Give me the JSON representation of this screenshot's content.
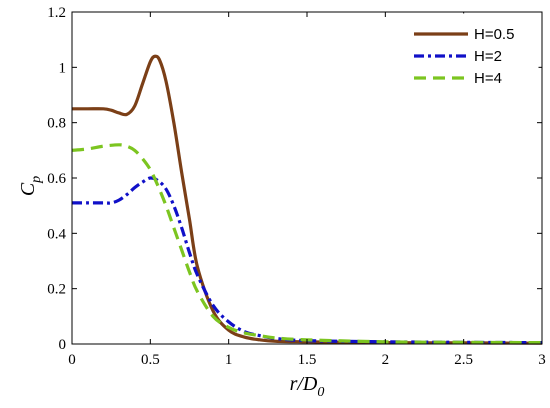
{
  "chart_data": {
    "type": "line",
    "title": "",
    "xlabel": {
      "main": "r/D",
      "sub": "0"
    },
    "ylabel": {
      "main": "C",
      "sub": "p"
    },
    "xlim": [
      0,
      3
    ],
    "ylim": [
      0,
      1.2
    ],
    "xticks": [
      0,
      0.5,
      1,
      1.5,
      2,
      2.5,
      3
    ],
    "xtick_labels": [
      "0",
      "0.5",
      "1",
      "1.5",
      "2",
      "2.5",
      "3"
    ],
    "yticks": [
      0,
      0.2,
      0.4,
      0.6,
      0.8,
      1,
      1.2
    ],
    "ytick_labels": [
      "0",
      "0.2",
      "0.4",
      "0.6",
      "0.8",
      "1",
      "1.2"
    ],
    "grid": false,
    "legend_position": "top-right",
    "series": [
      {
        "name": "H=0.5",
        "color": "#7B3F17",
        "style": "solid",
        "x": [
          0,
          0.1,
          0.2,
          0.25,
          0.3,
          0.35,
          0.4,
          0.45,
          0.5,
          0.53,
          0.56,
          0.6,
          0.65,
          0.7,
          0.75,
          0.8,
          0.9,
          1.0,
          1.1,
          1.2,
          1.3,
          1.5,
          2.0,
          2.5,
          3.0
        ],
        "y": [
          0.85,
          0.85,
          0.85,
          0.845,
          0.835,
          0.83,
          0.86,
          0.94,
          1.02,
          1.04,
          1.025,
          0.95,
          0.8,
          0.62,
          0.45,
          0.28,
          0.12,
          0.05,
          0.025,
          0.015,
          0.01,
          0.008,
          0.005,
          0.004,
          0.003
        ]
      },
      {
        "name": "H=2",
        "color": "#1010C8",
        "style": "dash-dot",
        "x": [
          0,
          0.1,
          0.2,
          0.25,
          0.3,
          0.35,
          0.4,
          0.45,
          0.5,
          0.55,
          0.6,
          0.65,
          0.7,
          0.75,
          0.8,
          0.9,
          1.0,
          1.1,
          1.2,
          1.3,
          1.5,
          2.0,
          2.5,
          3.0
        ],
        "y": [
          0.51,
          0.51,
          0.51,
          0.51,
          0.52,
          0.54,
          0.565,
          0.585,
          0.6,
          0.59,
          0.56,
          0.5,
          0.42,
          0.33,
          0.25,
          0.14,
          0.08,
          0.045,
          0.03,
          0.02,
          0.012,
          0.008,
          0.006,
          0.005
        ]
      },
      {
        "name": "H=4",
        "color": "#7CC520",
        "style": "dashed",
        "x": [
          0,
          0.1,
          0.2,
          0.3,
          0.35,
          0.4,
          0.45,
          0.5,
          0.55,
          0.6,
          0.65,
          0.7,
          0.75,
          0.8,
          0.9,
          1.0,
          1.1,
          1.2,
          1.3,
          1.5,
          2.0,
          2.5,
          3.0
        ],
        "y": [
          0.7,
          0.705,
          0.715,
          0.72,
          0.715,
          0.7,
          0.67,
          0.63,
          0.57,
          0.5,
          0.42,
          0.34,
          0.26,
          0.19,
          0.1,
          0.06,
          0.04,
          0.03,
          0.022,
          0.015,
          0.008,
          0.006,
          0.005
        ]
      }
    ]
  }
}
